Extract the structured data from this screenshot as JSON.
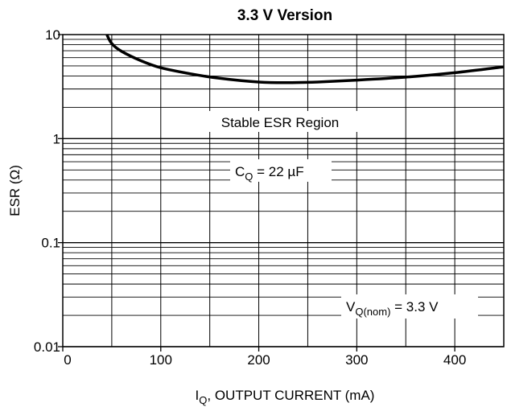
{
  "chart_data": {
    "type": "line",
    "title": "3.3 V Version",
    "ylabel": "ESR (Ω)",
    "xlabel": {
      "main": "I",
      "sub": "Q",
      "rest": ", OUTPUT CURRENT (mA)"
    },
    "xlim": [
      0,
      450
    ],
    "ylim": [
      0.01,
      10
    ],
    "yscale": "log",
    "grid": true,
    "x_ticks": [
      0,
      100,
      200,
      300,
      400
    ],
    "x_tick_labels": [
      "0",
      "100",
      "200",
      "300",
      "400"
    ],
    "y_ticks": [
      0.01,
      0.1,
      1,
      10
    ],
    "y_tick_labels": [
      "0.01",
      "0.1",
      "1",
      "10"
    ],
    "series": [
      {
        "x": [
          45,
          50,
          60,
          80,
          100,
          130,
          160,
          200,
          230,
          260,
          300,
          350,
          400,
          450
        ],
        "y": [
          10,
          8.2,
          6.9,
          5.6,
          4.8,
          4.2,
          3.8,
          3.5,
          3.45,
          3.5,
          3.65,
          3.9,
          4.3,
          4.9
        ]
      }
    ],
    "annotations": {
      "stable_region": "Stable ESR Region",
      "cap": {
        "main": "C",
        "sub": "Q",
        "rest": " = 22 µF"
      },
      "vnom": {
        "main": "V",
        "sub": "Q(nom)",
        "rest": " = 3.3 V"
      }
    },
    "colors": {
      "line": "#000000",
      "grid": "#000000",
      "background": "#ffffff"
    }
  }
}
